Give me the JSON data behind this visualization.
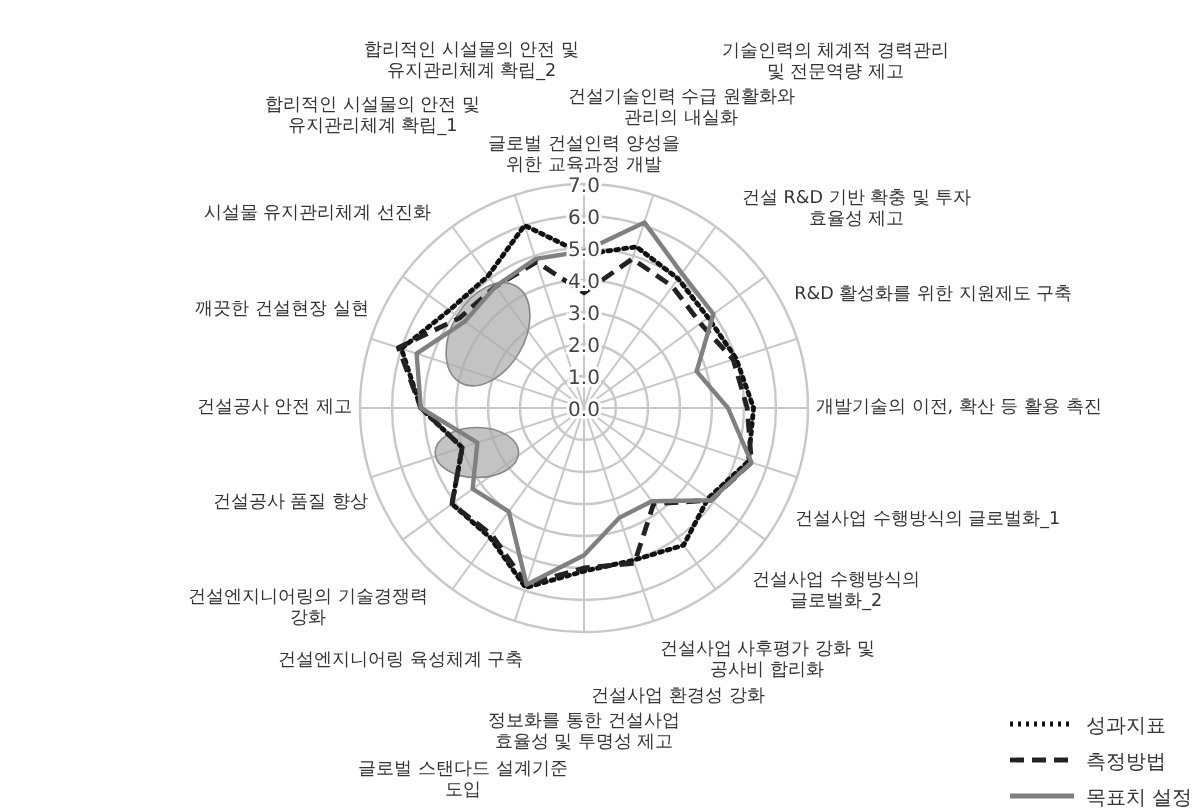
{
  "chart_data": {
    "type": "radar",
    "categories": [
      "글로벌 건설인력 양성을 위한 교육과정 개발",
      "건설기술인력 수급 원활화와 관리의 내실화",
      "기술인력의 체계적 경력관리 및 전문역량 제고",
      "건설 R&D 기반 확충 및 투자 효율성 제고",
      "R&D 활성화를 위한 지원제도 구축",
      "개발기술의 이전, 확산 등 활용 촉진",
      "건설사업 수행방식의 글로벌화_1",
      "건설사업 수행방식의 글로벌화_2",
      "건설사업 사후평가 강화 및 공사비 합리화",
      "건설사업 환경성 강화",
      "정보화를 통한 건설사업 효율성 및 투명성 제고",
      "글로벌 스탠다드 설계기준 도입",
      "건설엔지니어링 육성체계 구축",
      "건설엔지니어링의 기술경쟁력 강화",
      "건설공사 품질 향상",
      "건설공사 안전 제고",
      "깨끗한 건설현장 실현",
      "시설물 유지관리체계 선진화",
      "합리적인 시설물의 안전 및 유지관리체계 확립_1",
      "합리적인 시설물의 안전 및 유지관리체계 확립_2"
    ],
    "series": [
      {
        "name": "성과지표",
        "color": "#111111",
        "line_style": "dotted",
        "values": [
          4.8,
          5.3,
          5.0,
          4.8,
          5.0,
          5.3,
          5.4,
          4.8,
          5.3,
          5.0,
          5.1,
          5.9,
          5.0,
          5.1,
          4.0,
          5.1,
          6.0,
          5.2,
          5.1,
          6.0
        ]
      },
      {
        "name": "측정방법",
        "color": "#222222",
        "line_style": "dashed",
        "values": [
          3.6,
          4.9,
          4.7,
          4.5,
          4.9,
          5.1,
          5.5,
          4.9,
          3.7,
          5.1,
          5.0,
          5.8,
          4.9,
          5.1,
          4.0,
          5.1,
          6.1,
          4.8,
          4.7,
          4.8
        ]
      },
      {
        "name": "목표치 설정",
        "color": "#808080",
        "line_style": "solid",
        "values": [
          4.9,
          6.1,
          5.2,
          5.0,
          3.7,
          4.5,
          5.5,
          4.9,
          3.6,
          3.6,
          4.6,
          5.8,
          4.0,
          4.3,
          3.5,
          5.1,
          5.5,
          4.6,
          4.7,
          4.9
        ]
      }
    ],
    "ylim": [
      0,
      7
    ],
    "yticks": [
      {
        "value": 0,
        "label": "0.0"
      },
      {
        "value": 1,
        "label": "1.0"
      },
      {
        "value": 2,
        "label": "2.0"
      },
      {
        "value": 3,
        "label": "3.0"
      },
      {
        "value": 4,
        "label": "4.0"
      },
      {
        "value": 5,
        "label": "5.0"
      },
      {
        "value": 6,
        "label": "6.0"
      },
      {
        "value": 7,
        "label": "7.0"
      }
    ],
    "grid": true,
    "legend": "bottom right"
  }
}
